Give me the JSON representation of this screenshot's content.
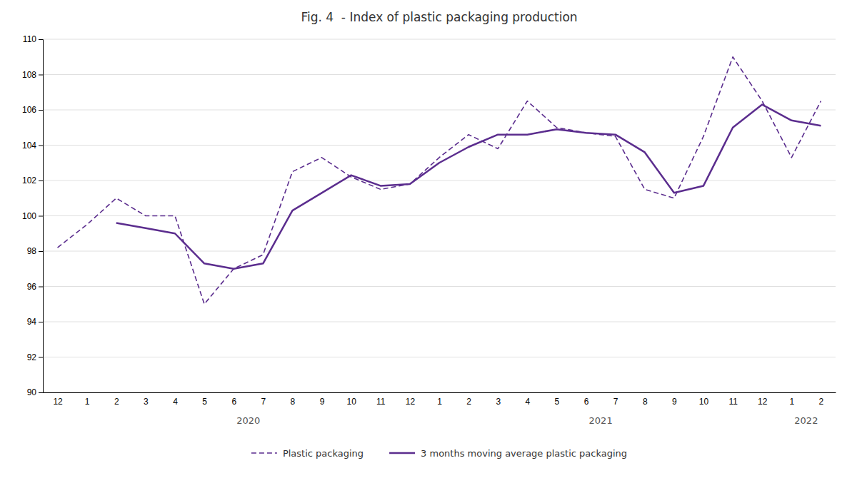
{
  "chart_data": {
    "type": "line",
    "title": "Fig. 4  - Index of plastic packaging production",
    "categories": [
      "12",
      "1",
      "2",
      "3",
      "4",
      "5",
      "6",
      "7",
      "8",
      "9",
      "10",
      "11",
      "12",
      "1",
      "2",
      "3",
      "4",
      "5",
      "6",
      "7",
      "8",
      "9",
      "10",
      "11",
      "12",
      "1",
      "2"
    ],
    "series": [
      {
        "name": "Plastic packaging",
        "color": "#5b2d8e",
        "line_style": "dashed",
        "values": [
          98.2,
          99.5,
          101.0,
          100.0,
          100.0,
          95.0,
          97.0,
          97.8,
          102.5,
          103.3,
          102.2,
          101.5,
          101.8,
          103.3,
          104.6,
          103.8,
          106.5,
          105.0,
          104.7,
          104.5,
          101.5,
          101.0,
          104.5,
          109.0,
          106.5,
          103.3,
          106.5
        ]
      },
      {
        "name": "3 months moving average plastic packaging",
        "color": "#5b2d8e",
        "line_style": "solid",
        "values": [
          null,
          null,
          99.6,
          99.3,
          99.0,
          97.3,
          97.0,
          97.3,
          100.3,
          101.3,
          102.3,
          101.7,
          101.8,
          103.0,
          103.9,
          104.6,
          104.6,
          104.9,
          104.7,
          104.6,
          103.6,
          101.3,
          101.7,
          105.0,
          106.3,
          105.4,
          105.1
        ]
      }
    ],
    "ylim": [
      90,
      110
    ],
    "yticks": [
      90,
      92,
      94,
      96,
      98,
      100,
      102,
      104,
      106,
      108,
      110
    ],
    "grid": true,
    "legend": "bottom",
    "annotations": [
      {
        "text": "2020",
        "x": 6.5
      },
      {
        "text": "2021",
        "x": 18.5
      },
      {
        "text": "2022",
        "x": 25.5
      }
    ]
  }
}
